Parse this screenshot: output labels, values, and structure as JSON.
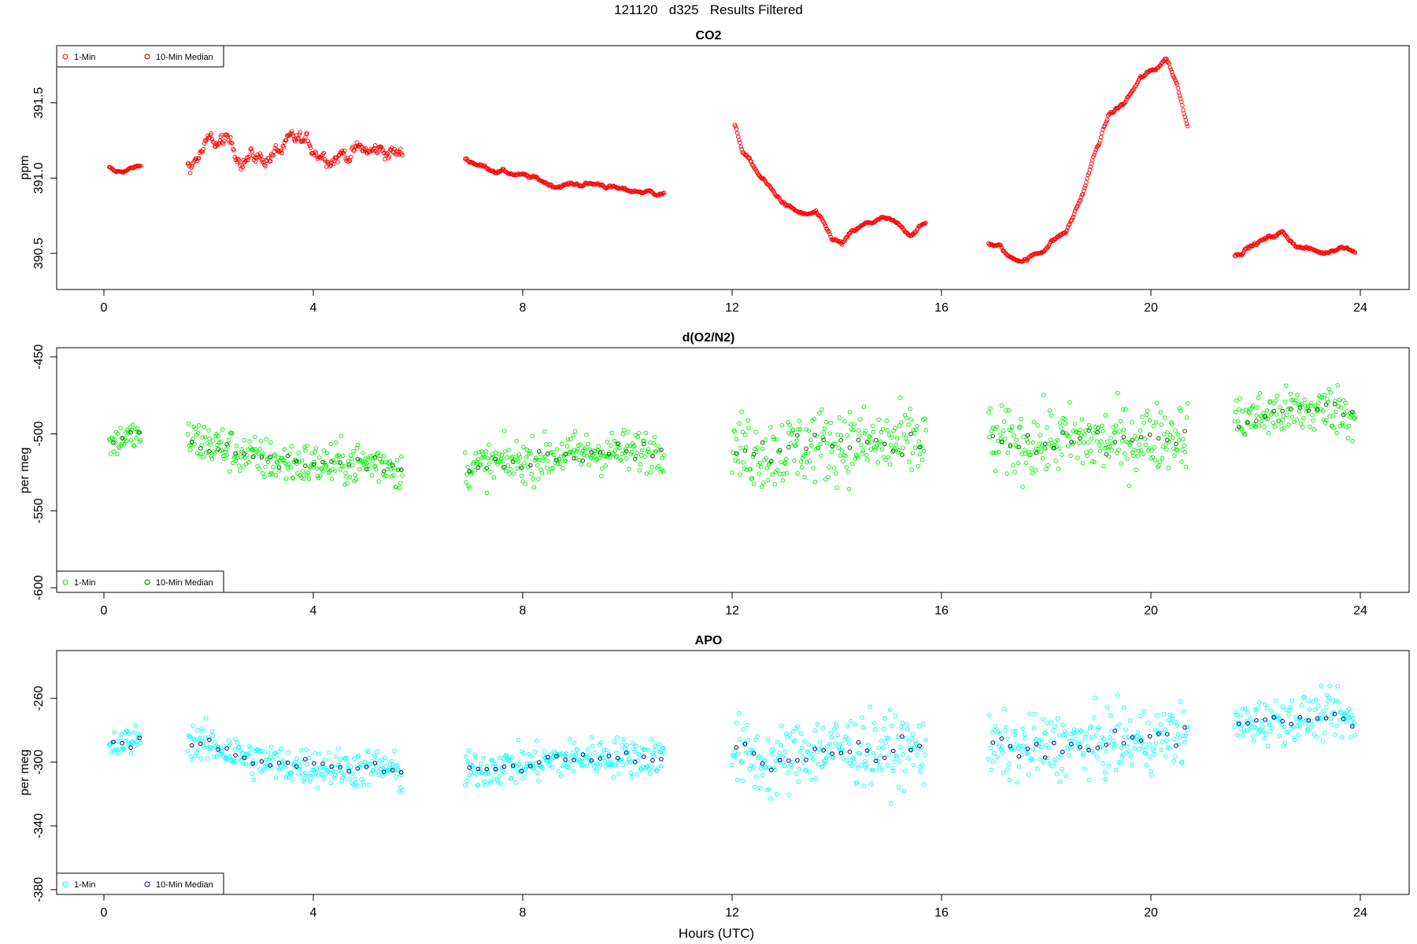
{
  "figure_title": "121120   d325   Results Filtered",
  "x_axis_label": "Hours (UTC)",
  "x_ticks": [
    0,
    4,
    8,
    12,
    16,
    20,
    24
  ],
  "legend_labels": {
    "one_min": "1-Min",
    "ten_min": "10-Min Median"
  },
  "colors": {
    "co2": "#ff0000",
    "o2n2_one_min": "#00ee00",
    "o2n2_median": "#006400",
    "apo_one_min": "#00ffff",
    "apo_median": "#00008b",
    "axis": "#000000"
  },
  "chart_data": [
    {
      "type": "scatter",
      "title": "CO2",
      "ylabel": "ppm",
      "xlim": [
        0,
        24
      ],
      "ylim": [
        390.26,
        391.88
      ],
      "y_ticks": [
        390.5,
        391.0,
        391.5
      ],
      "y_tick_labels": [
        "390.5",
        "391.0",
        "391.5"
      ],
      "legend_position": "top-left",
      "segments": [
        {
          "x": [
            0.1,
            0.2,
            0.3,
            0.5,
            0.7
          ],
          "y": [
            391.07,
            391.04,
            391.04,
            391.06,
            391.08
          ],
          "scatter": 0.01
        },
        {
          "x": [
            1.6,
            1.8,
            2.0,
            2.3,
            2.6,
            3.0,
            3.4,
            3.7,
            4.0,
            4.4,
            4.8,
            5.1,
            5.4,
            5.7
          ],
          "y": [
            391.08,
            391.15,
            391.22,
            391.24,
            391.16,
            391.13,
            391.18,
            391.24,
            391.2,
            391.16,
            391.18,
            391.17,
            391.19,
            391.14
          ],
          "scatter": 0.05
        },
        {
          "x": [
            6.9,
            7.3,
            7.8,
            8.3,
            8.6,
            9.0,
            9.5,
            9.9,
            10.3,
            10.7
          ],
          "y": [
            391.13,
            391.07,
            391.03,
            390.99,
            390.95,
            390.96,
            390.96,
            390.92,
            390.91,
            390.9
          ],
          "scatter": 0.012
        },
        {
          "x": [
            12.05,
            12.2,
            12.5,
            12.8,
            13.1,
            13.4,
            13.6,
            13.9,
            14.1,
            14.3,
            14.6,
            14.9,
            15.1,
            15.4,
            15.7
          ],
          "y": [
            391.35,
            391.18,
            391.03,
            390.9,
            390.8,
            390.75,
            390.77,
            390.6,
            390.56,
            390.64,
            390.7,
            390.73,
            390.7,
            390.63,
            390.7
          ],
          "scatter": 0.012
        },
        {
          "x": [
            16.9,
            17.1,
            17.3,
            17.6,
            17.9,
            18.1,
            18.4,
            18.7,
            18.9,
            19.2,
            19.5,
            19.8,
            20.1,
            20.3,
            20.5,
            20.7
          ],
          "y": [
            390.57,
            390.55,
            390.47,
            390.46,
            390.51,
            390.58,
            390.65,
            390.9,
            391.13,
            391.42,
            391.5,
            391.66,
            391.73,
            391.8,
            391.62,
            391.36
          ],
          "scatter": 0.012
        },
        {
          "x": [
            21.6,
            21.8,
            22.1,
            22.5,
            22.8,
            23.1,
            23.3,
            23.6,
            23.9
          ],
          "y": [
            390.48,
            390.53,
            390.58,
            390.64,
            390.55,
            390.52,
            390.5,
            390.55,
            390.52
          ],
          "scatter": 0.012
        }
      ],
      "series": [
        {
          "name": "1-Min",
          "color": "#ff0000"
        },
        {
          "name": "10-Min Median",
          "color": "#8b0000"
        }
      ]
    },
    {
      "type": "scatter",
      "title": "d(O2/N2)",
      "ylabel": "per meg",
      "xlim": [
        0,
        24
      ],
      "ylim": [
        -603,
        -444
      ],
      "y_ticks": [
        -600,
        -550,
        -500,
        -450
      ],
      "y_tick_labels": [
        "-600",
        "-550",
        "-500",
        "-450"
      ],
      "legend_position": "bottom-left",
      "segments": [
        {
          "x": [
            0.1,
            0.4,
            0.7
          ],
          "y": [
            -507,
            -502,
            -501
          ],
          "scatter": 5
        },
        {
          "x": [
            1.6,
            2.2,
            2.8,
            3.5,
            4.2,
            4.9,
            5.4,
            5.7
          ],
          "y": [
            -503,
            -508,
            -515,
            -519,
            -520,
            -519,
            -519,
            -525
          ],
          "scatter": 7
        },
        {
          "x": [
            6.9,
            7.5,
            8.2,
            8.8,
            9.5,
            10.2,
            10.7
          ],
          "y": [
            -522,
            -519,
            -517,
            -513,
            -512,
            -511,
            -510
          ],
          "scatter": 7
        },
        {
          "x": [
            12.0,
            12.7,
            13.4,
            14.1,
            14.8,
            15.7
          ],
          "y": [
            -510,
            -513,
            -508,
            -506,
            -507,
            -505
          ],
          "scatter": 12
        },
        {
          "x": [
            16.9,
            17.6,
            18.4,
            19.2,
            19.9,
            20.7
          ],
          "y": [
            -505,
            -507,
            -504,
            -505,
            -503,
            -499
          ],
          "scatter": 11
        },
        {
          "x": [
            21.6,
            22.3,
            23.0,
            23.5,
            23.9
          ],
          "y": [
            -491,
            -487,
            -485,
            -483,
            -490
          ],
          "scatter": 8
        }
      ],
      "series": [
        {
          "name": "1-Min",
          "color": "#00ee00"
        },
        {
          "name": "10-Min Median",
          "color": "#006400"
        }
      ]
    },
    {
      "type": "scatter",
      "title": "APO",
      "ylabel": "per meg",
      "xlim": [
        0,
        24
      ],
      "ylim": [
        -383,
        -230
      ],
      "y_ticks": [
        -380,
        -340,
        -300,
        -260
      ],
      "y_tick_labels": [
        "-380",
        "-340",
        "-300",
        "-260"
      ],
      "legend_position": "bottom-left",
      "segments": [
        {
          "x": [
            0.1,
            0.4,
            0.7
          ],
          "y": [
            -292,
            -288,
            -284
          ],
          "scatter": 5
        },
        {
          "x": [
            1.6,
            2.2,
            2.8,
            3.5,
            4.2,
            4.9,
            5.4,
            5.7
          ],
          "y": [
            -286,
            -291,
            -298,
            -302,
            -303,
            -304,
            -303,
            -309
          ],
          "scatter": 6
        },
        {
          "x": [
            6.9,
            7.5,
            8.2,
            8.8,
            9.5,
            10.2,
            10.7
          ],
          "y": [
            -306,
            -303,
            -301,
            -298,
            -296,
            -297,
            -296
          ],
          "scatter": 6
        },
        {
          "x": [
            12.0,
            12.7,
            13.4,
            14.1,
            14.8,
            15.7
          ],
          "y": [
            -292,
            -302,
            -293,
            -291,
            -293,
            -292
          ],
          "scatter": 11
        },
        {
          "x": [
            16.9,
            17.6,
            18.4,
            19.2,
            19.9,
            20.7
          ],
          "y": [
            -291,
            -292,
            -289,
            -288,
            -287,
            -281
          ],
          "scatter": 10
        },
        {
          "x": [
            21.6,
            22.3,
            23.0,
            23.5,
            23.9
          ],
          "y": [
            -277,
            -274,
            -272,
            -270,
            -276
          ],
          "scatter": 7
        }
      ],
      "series": [
        {
          "name": "1-Min",
          "color": "#00ffff"
        },
        {
          "name": "10-Min Median",
          "color": "#00008b"
        }
      ]
    }
  ]
}
